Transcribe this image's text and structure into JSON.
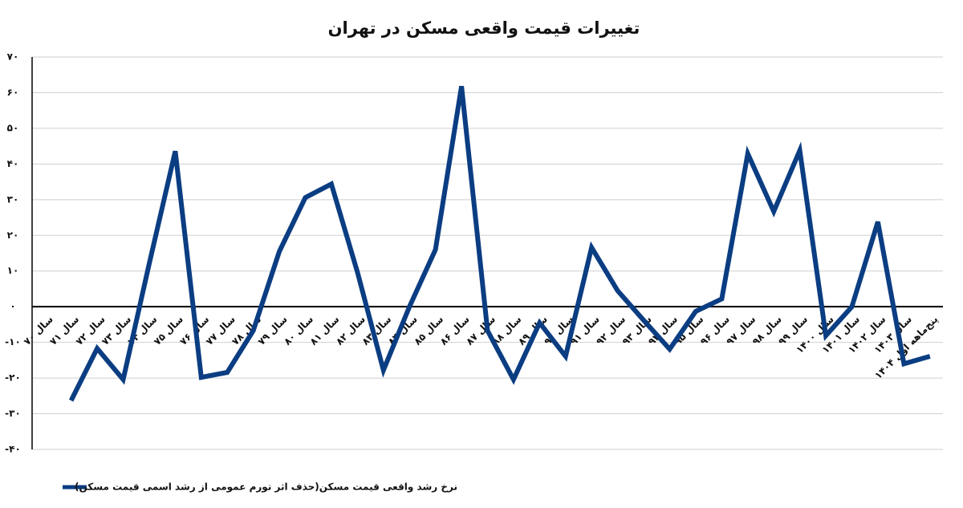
{
  "chart_data": {
    "type": "line",
    "title": "تغییرات قیمت واقعی مسکن در تهران",
    "categories": [
      "سال ۷۰",
      "سال ۷۱",
      "سال ۷۲",
      "سال ۷۳",
      "سال ۷۴",
      "سال ۷۵",
      "سال ۷۶",
      "سال ۷۷",
      "سال ۷۸",
      "سال ۷۹",
      "سال ۸۰",
      "سال ۸۱",
      "سال ۸۲",
      "سال ۸۳",
      "سال ۸۴",
      "سال ۸۵",
      "سال ۸۶",
      "سال ۸۷",
      "سال ۸۸",
      "سال ۸۹",
      "سال ۹۰",
      "سال ۹۱",
      "سال ۹۲",
      "سال ۹۳",
      "سال ۹۴",
      "سال ۹۵",
      "سال ۹۶",
      "سال ۹۷",
      "سال ۹۸",
      "سال ۹۹",
      "سال ۱۴۰۰",
      "سال ۱۴۰۱",
      "سال ۱۴۰۲",
      "سال ۱۴۰۳",
      "پنج‌ماهه اول ۱۴۰۴"
    ],
    "series": [
      {
        "name": "نرخ رشد واقعی قیمت مسکن(حذف اثر تورم عمومی از رشد اسمی قیمت مسکن)",
        "color": "#0b3d82",
        "values": [
          null,
          -26.3,
          -11.7,
          -20.4,
          12,
          43.6,
          -19.8,
          -18.4,
          -6.7,
          15.5,
          30.6,
          34.4,
          9.7,
          -17.8,
          0,
          16,
          61.8,
          -6.7,
          -20.4,
          -4.5,
          -13.9,
          16.6,
          4.5,
          -3.8,
          -11.9,
          -1.3,
          2.2,
          42.9,
          26.7,
          43.8,
          -8.1,
          0,
          23.8,
          -16,
          -13.9
        ]
      }
    ],
    "ylim": [
      -40,
      70
    ],
    "yticks": [
      {
        "value": -40,
        "label": "-۴۰"
      },
      {
        "value": -30,
        "label": "-۳۰"
      },
      {
        "value": -20,
        "label": "-۲۰"
      },
      {
        "value": -10,
        "label": "-۱۰"
      },
      {
        "value": 0,
        "label": "۰"
      },
      {
        "value": 10,
        "label": "۱۰"
      },
      {
        "value": 20,
        "label": "۲۰"
      },
      {
        "value": 30,
        "label": "۳۰"
      },
      {
        "value": 40,
        "label": "۴۰"
      },
      {
        "value": 50,
        "label": "۵۰"
      },
      {
        "value": 60,
        "label": "۶۰"
      },
      {
        "value": 70,
        "label": "۷۰"
      }
    ],
    "grid": true
  }
}
